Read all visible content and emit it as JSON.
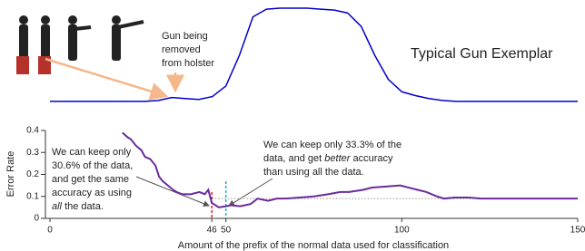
{
  "chart_data": [
    {
      "type": "line",
      "title": "Typical Gun Exemplar",
      "annotation": [
        "Gun being",
        "removed",
        "from holster"
      ],
      "color": "#0000cc",
      "ylim": [
        0,
        100
      ],
      "values": [
        2,
        2,
        2,
        2,
        2,
        2,
        2,
        2,
        3,
        6,
        5,
        4,
        7,
        18,
        50,
        90,
        98,
        99,
        99,
        99,
        98,
        97,
        94,
        80,
        50,
        25,
        12,
        8,
        5,
        3,
        2,
        2,
        2,
        2,
        2,
        2,
        2,
        2,
        2,
        2
      ]
    },
    {
      "type": "line",
      "xlabel": "Amount of the prefix of the normal data used for classification",
      "ylabel": "Error Rate",
      "xlim": [
        0,
        150
      ],
      "ylim": [
        0,
        0.4
      ],
      "xticks": [
        0,
        46,
        50,
        100,
        150
      ],
      "yticks": [
        0,
        0.1,
        0.2,
        0.3,
        0.4
      ],
      "x": [
        20.6,
        22,
        23,
        24.5,
        26,
        27,
        28.5,
        30,
        31,
        32,
        33.5,
        35,
        36,
        37.5,
        40,
        42.5,
        44,
        45,
        46,
        48,
        50,
        51.5,
        54,
        57,
        59,
        62,
        64.5,
        67,
        71,
        75,
        79,
        82.5,
        85,
        89,
        91.5,
        95.5,
        99.5,
        102,
        104.5,
        107,
        110,
        112,
        115,
        119,
        122.5,
        126.5,
        130,
        135.5,
        140.5,
        150
      ],
      "series": [
        {
          "color": "#6a2a9c",
          "values": [
            0.39,
            0.37,
            0.36,
            0.33,
            0.31,
            0.28,
            0.27,
            0.24,
            0.19,
            0.17,
            0.15,
            0.13,
            0.12,
            0.11,
            0.11,
            0.12,
            0.11,
            0.13,
            0.07,
            0.05,
            0.055,
            0.06,
            0.055,
            0.065,
            0.09,
            0.08,
            0.09,
            0.09,
            0.095,
            0.1,
            0.11,
            0.12,
            0.12,
            0.13,
            0.14,
            0.145,
            0.15,
            0.14,
            0.13,
            0.12,
            0.1,
            0.09,
            0.095,
            0.095,
            0.09,
            0.09,
            0.09,
            0.09,
            0.09,
            0.09
          ]
        }
      ],
      "all_data_error": 0.09,
      "annotations": [
        [
          [
            {
              "text": "We can keep only"
            }
          ],
          [
            {
              "text": "30.6% of the data,"
            }
          ],
          [
            {
              "text": "and get the same"
            }
          ],
          [
            {
              "text": "accuracy as using"
            }
          ],
          [
            {
              "text": "all",
              "italic": true
            },
            {
              "text": " the data."
            }
          ]
        ],
        [
          [
            {
              "text": "We can keep only 33.3% of the"
            }
          ],
          [
            {
              "text": "data, and get "
            },
            {
              "text": "better",
              "italic": true
            },
            {
              "text": " accuracy"
            }
          ],
          [
            {
              "text": "than using all the data."
            }
          ]
        ]
      ]
    }
  ]
}
